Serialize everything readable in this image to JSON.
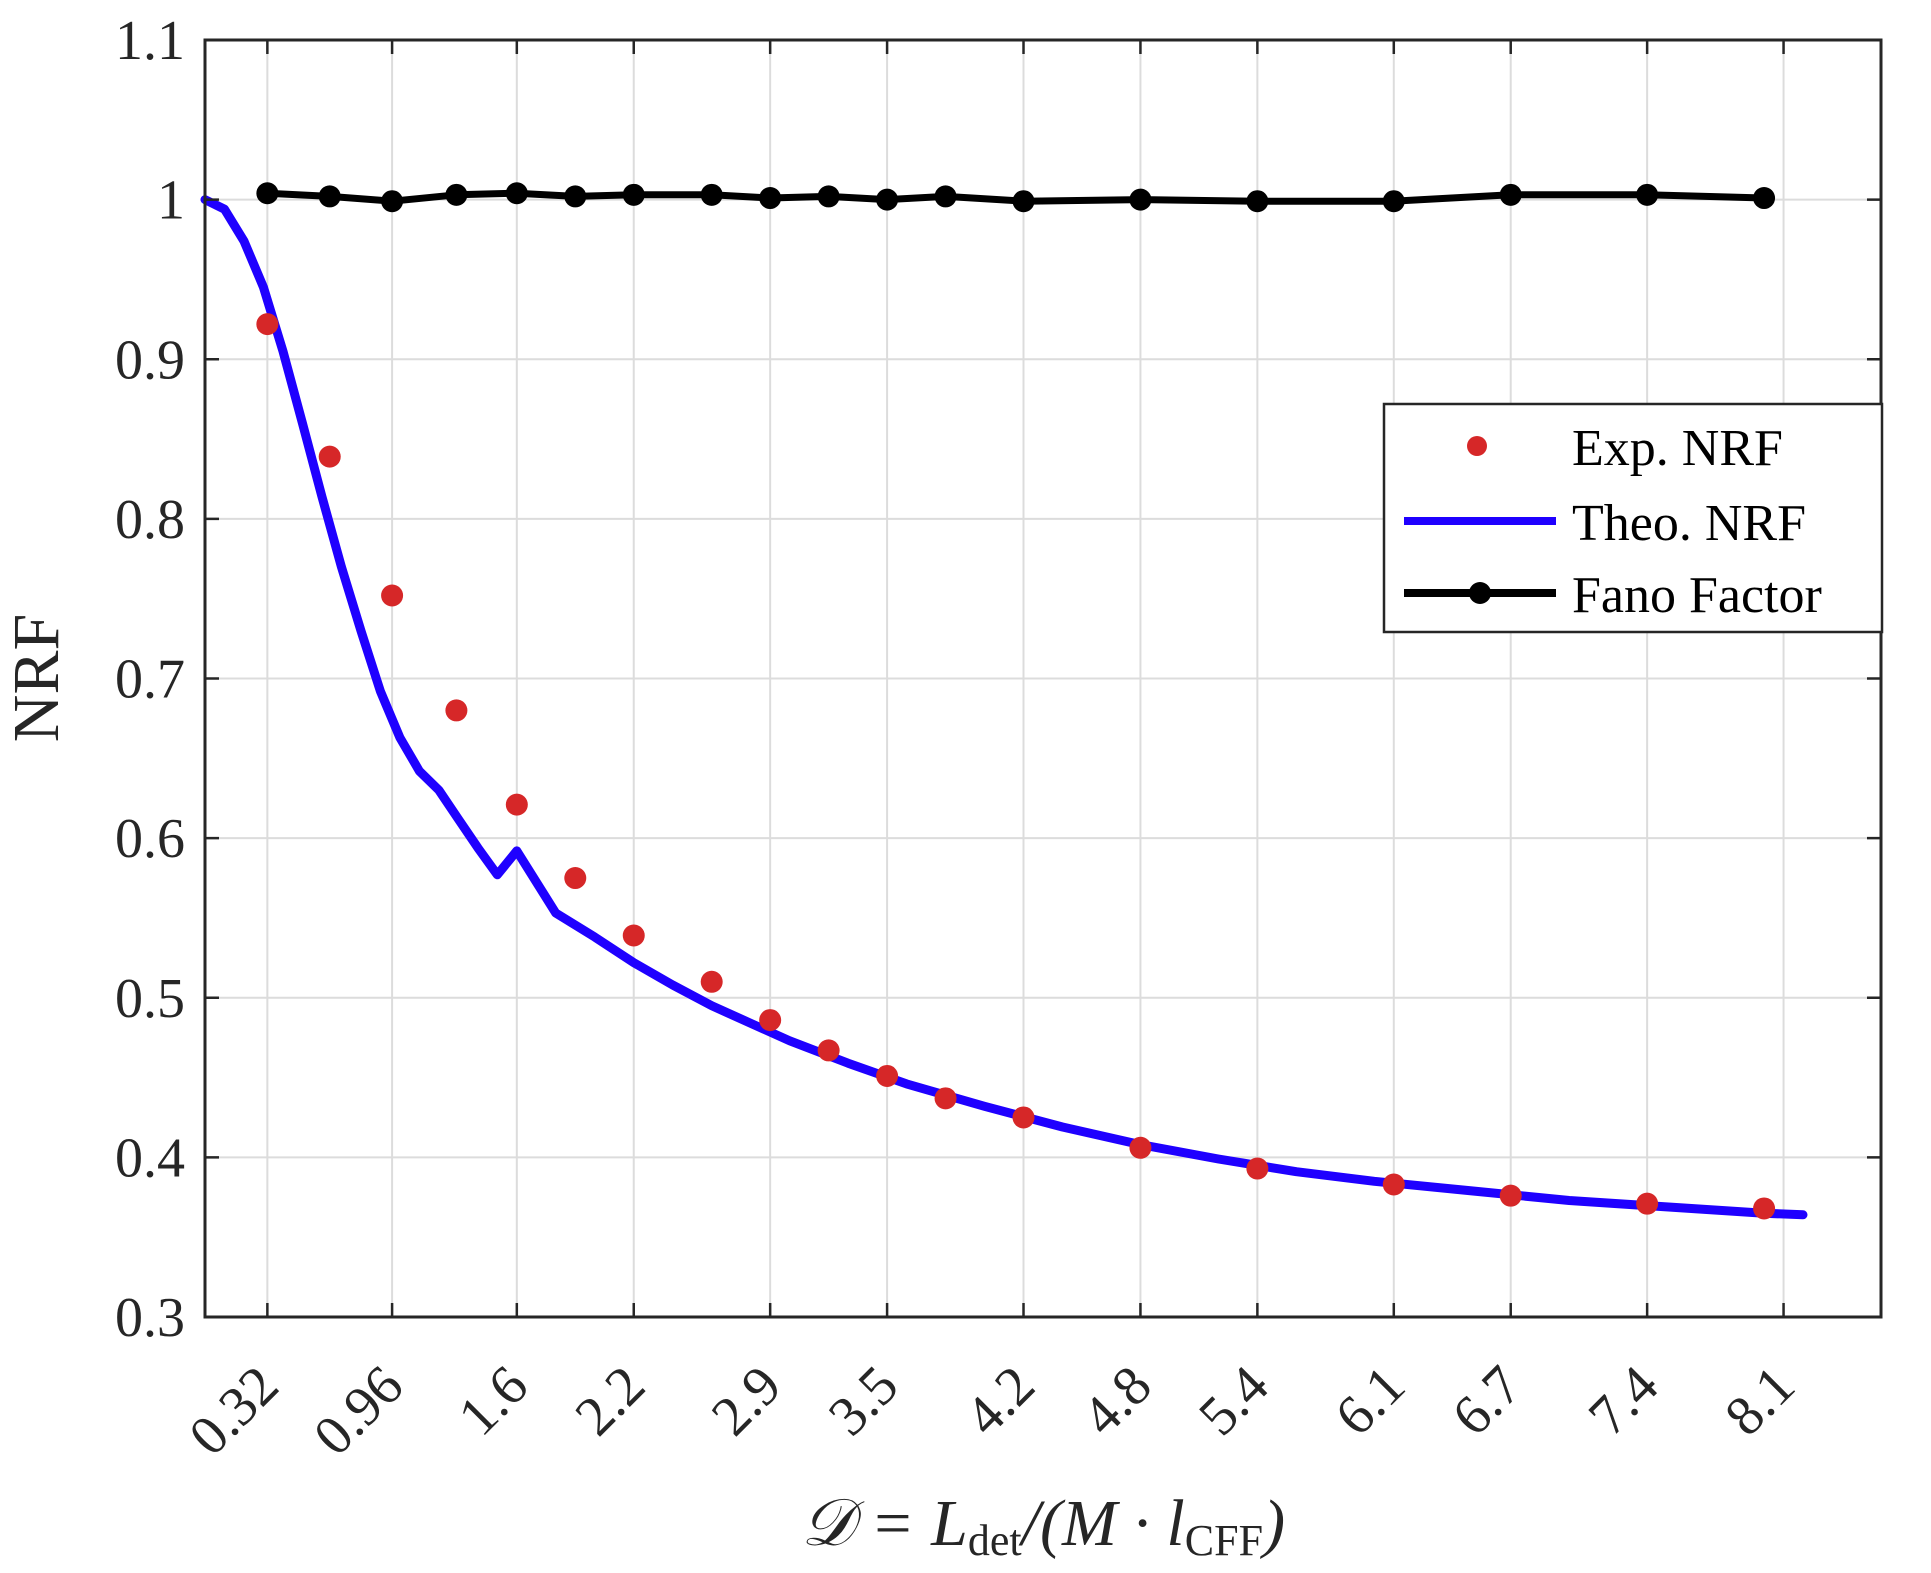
{
  "chart_data": {
    "type": "line",
    "title": "",
    "xlabel": "𝒟 = L_det/(M · l_CFF)",
    "xlabel_parts": {
      "prefix": "𝒟 = L",
      "sub1": "det",
      "mid": "/(M · l",
      "sub2": "CFF",
      "suffix": ")"
    },
    "ylabel": "NRF",
    "xlim": [
      0,
      8.6
    ],
    "ylim": [
      0.3,
      1.1
    ],
    "yticks": [
      0.3,
      0.4,
      0.5,
      0.6,
      0.7,
      0.8,
      0.9,
      1,
      1.1
    ],
    "ytick_labels": [
      "0.3",
      "0.4",
      "0.5",
      "0.6",
      "0.7",
      "0.8",
      "0.9",
      "1",
      "1.1"
    ],
    "xticks": [
      0.32,
      0.96,
      1.6,
      2.2,
      2.9,
      3.5,
      4.2,
      4.8,
      5.4,
      6.1,
      6.7,
      7.4,
      8.1
    ],
    "xtick_labels": [
      "0.32",
      "0.96",
      "1.6",
      "2.2",
      "2.9",
      "3.5",
      "4.2",
      "4.8",
      "5.4",
      "6.1",
      "6.7",
      "7.4",
      "8.1"
    ],
    "grid": true,
    "legend_position": "right",
    "colors": {
      "exp": "#d62728",
      "theo": "#1f00ff",
      "fano": "#000000",
      "axis": "#262626"
    },
    "series": [
      {
        "name": "Exp. NRF",
        "kind": "scatter",
        "x": [
          0.32,
          0.64,
          0.96,
          1.29,
          1.6,
          1.9,
          2.2,
          2.6,
          2.9,
          3.2,
          3.5,
          3.8,
          4.2,
          4.8,
          5.4,
          6.1,
          6.7,
          7.4,
          8.0
        ],
        "y": [
          0.922,
          0.839,
          0.752,
          0.68,
          0.621,
          0.575,
          0.539,
          0.51,
          0.486,
          0.467,
          0.451,
          0.437,
          0.425,
          0.406,
          0.393,
          0.383,
          0.376,
          0.371,
          0.368
        ]
      },
      {
        "name": "Theo. NRF",
        "kind": "line",
        "x": [
          0.0,
          0.1,
          0.2,
          0.3,
          0.4,
          0.5,
          0.6,
          0.7,
          0.8,
          0.9,
          1.0,
          1.1,
          1.2,
          1.3,
          1.4,
          1.5,
          1.6,
          1.8,
          2.0,
          2.2,
          2.4,
          2.6,
          2.8,
          3.0,
          3.3,
          3.6,
          4.0,
          4.4,
          4.8,
          5.2,
          5.6,
          6.0,
          6.5,
          7.0,
          7.5,
          8.0,
          8.2
        ],
        "y": [
          1.0,
          0.994,
          0.974,
          0.945,
          0.905,
          0.86,
          0.814,
          0.77,
          0.73,
          0.692,
          0.663,
          0.642,
          0.63,
          0.612,
          0.594,
          0.577,
          0.592,
          0.553,
          0.538,
          0.522,
          0.508,
          0.495,
          0.484,
          0.473,
          0.459,
          0.446,
          0.432,
          0.419,
          0.408,
          0.399,
          0.391,
          0.385,
          0.379,
          0.373,
          0.369,
          0.365,
          0.364
        ]
      },
      {
        "name": "Fano Factor",
        "kind": "line-marker",
        "x": [
          0.32,
          0.64,
          0.96,
          1.29,
          1.6,
          1.9,
          2.2,
          2.6,
          2.9,
          3.2,
          3.5,
          3.8,
          4.2,
          4.8,
          5.4,
          6.1,
          6.7,
          7.4,
          8.0
        ],
        "y": [
          1.004,
          1.002,
          0.999,
          1.003,
          1.004,
          1.002,
          1.003,
          1.003,
          1.001,
          1.002,
          1.0,
          1.002,
          0.999,
          1.0,
          0.999,
          0.999,
          1.003,
          1.003,
          1.001
        ]
      }
    ]
  }
}
